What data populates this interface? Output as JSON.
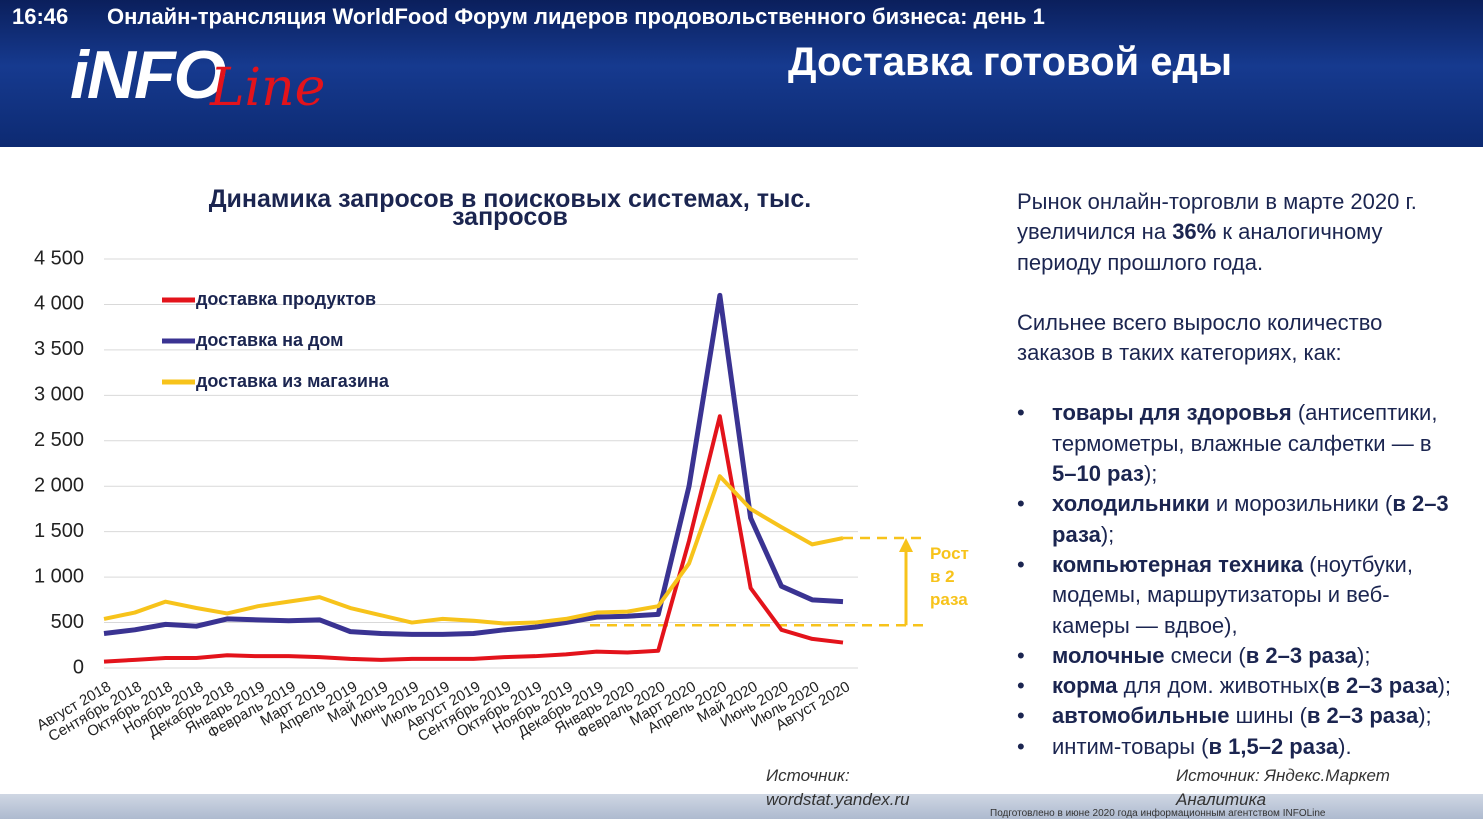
{
  "header": {
    "time": "16:46",
    "stream_title": "Онлайн-трансляция WorldFood Форум лидеров продовольственного бизнеса: день 1",
    "logo_main": "iNFO",
    "logo_script": "Line",
    "slide_title": "Доставка готовой еды"
  },
  "chart_data": {
    "type": "line",
    "title": "Динамика запросов в поисковых системах, тыс. запросов",
    "categories": [
      "Август 2018",
      "Сентябрь 2018",
      "Октябрь 2018",
      "Ноябрь 2018",
      "Декабрь 2018",
      "Январь 2019",
      "Февраль 2019",
      "Март 2019",
      "Апрель 2019",
      "Май 2019",
      "Июнь 2019",
      "Июль 2019",
      "Август 2019",
      "Сентябрь 2019",
      "Октябрь 2019",
      "Ноябрь 2019",
      "Декабрь 2019",
      "Январь 2020",
      "Февраль 2020",
      "Март 2020",
      "Апрель 2020",
      "Май 2020",
      "Июнь 2020",
      "Июль 2020",
      "Август 2020"
    ],
    "series": [
      {
        "name": "доставка продуктов",
        "color": "#e3131b",
        "values": [
          70,
          90,
          110,
          110,
          140,
          130,
          130,
          120,
          100,
          90,
          100,
          100,
          100,
          120,
          130,
          150,
          180,
          170,
          190,
          1400,
          2770,
          880,
          420,
          320,
          280
        ]
      },
      {
        "name": "доставка на дом",
        "color": "#3a3392",
        "values": [
          380,
          420,
          480,
          460,
          540,
          530,
          520,
          530,
          400,
          380,
          370,
          370,
          380,
          420,
          450,
          500,
          560,
          570,
          590,
          2000,
          4100,
          1650,
          900,
          750,
          730
        ]
      },
      {
        "name": "доставка из магазина",
        "color": "#f7c31b",
        "values": [
          540,
          610,
          730,
          660,
          600,
          680,
          730,
          780,
          660,
          580,
          500,
          540,
          520,
          490,
          500,
          540,
          610,
          620,
          680,
          1150,
          2110,
          1750,
          1550,
          1360,
          1430
        ]
      }
    ],
    "ylim": [
      0,
      4500
    ],
    "yticks": [
      0,
      500,
      {
        "value": 1000,
        "label": "1 000"
      },
      {
        "value": 1500,
        "label": "1 500"
      },
      {
        "value": 2000,
        "label": "2 000"
      },
      {
        "value": 2500,
        "label": "2 500"
      },
      {
        "value": 3000,
        "label": "3 000"
      },
      {
        "value": 3500,
        "label": "3 500"
      },
      {
        "value": 4000,
        "label": "4 000"
      },
      {
        "value": 4500,
        "label": "4 500"
      }
    ],
    "grid": true,
    "legend": "upper left",
    "annotation": {
      "text": "Рост в 2 раза",
      "range": [
        470,
        1430
      ],
      "color": "#f7c31b"
    },
    "source": "Источник: wordstat.yandex.ru"
  },
  "panel": {
    "paragraphs": [
      [
        {
          "text": "Рынок онлайн-торговли в марте 2020 г. увеличился на "
        },
        {
          "text": "36%",
          "bold": true
        },
        {
          "text": " к аналогичному периоду прошлого года."
        }
      ],
      [
        {
          "text": "Сильнее всего выросло количество заказов в таких категориях, как:"
        }
      ]
    ],
    "bullets": [
      [
        {
          "text": "товары для здоровья",
          "bold": true
        },
        {
          "text": " (антисептики, термометры, влажные салфетки — в "
        },
        {
          "text": "5–10 раз",
          "bold": true
        },
        {
          "text": ");"
        }
      ],
      [
        {
          "text": "холодильники",
          "bold": true
        },
        {
          "text": " и морозильники ("
        },
        {
          "text": "в 2–3 раза",
          "bold": true
        },
        {
          "text": ");"
        }
      ],
      [
        {
          "text": "компьютерная техника",
          "bold": true
        },
        {
          "text": " (ноутбуки, модемы, маршрутизаторы и веб-камеры — вдвое),"
        }
      ],
      [
        {
          "text": "молочные",
          "bold": true
        },
        {
          "text": " смеси ("
        },
        {
          "text": "в 2–3 раза",
          "bold": true
        },
        {
          "text": ");"
        }
      ],
      [
        {
          "text": "корма",
          "bold": true
        },
        {
          "text": " для дом. животных("
        },
        {
          "text": "в 2–3 раза",
          "bold": true
        },
        {
          "text": ");"
        }
      ],
      [
        {
          "text": "автомобильные",
          "bold": true
        },
        {
          "text": " шины ("
        },
        {
          "text": "в 2–3 раза",
          "bold": true
        },
        {
          "text": ");"
        }
      ],
      [
        {
          "text": "интим-товары ("
        },
        {
          "text": "в 1,5–2 раза",
          "bold": true
        },
        {
          "text": ")."
        }
      ]
    ],
    "source": "Источник: Яндекс.Маркет Аналитика",
    "footer": "Подготовлено в июне 2020 года информационным агентством INFOLine"
  }
}
